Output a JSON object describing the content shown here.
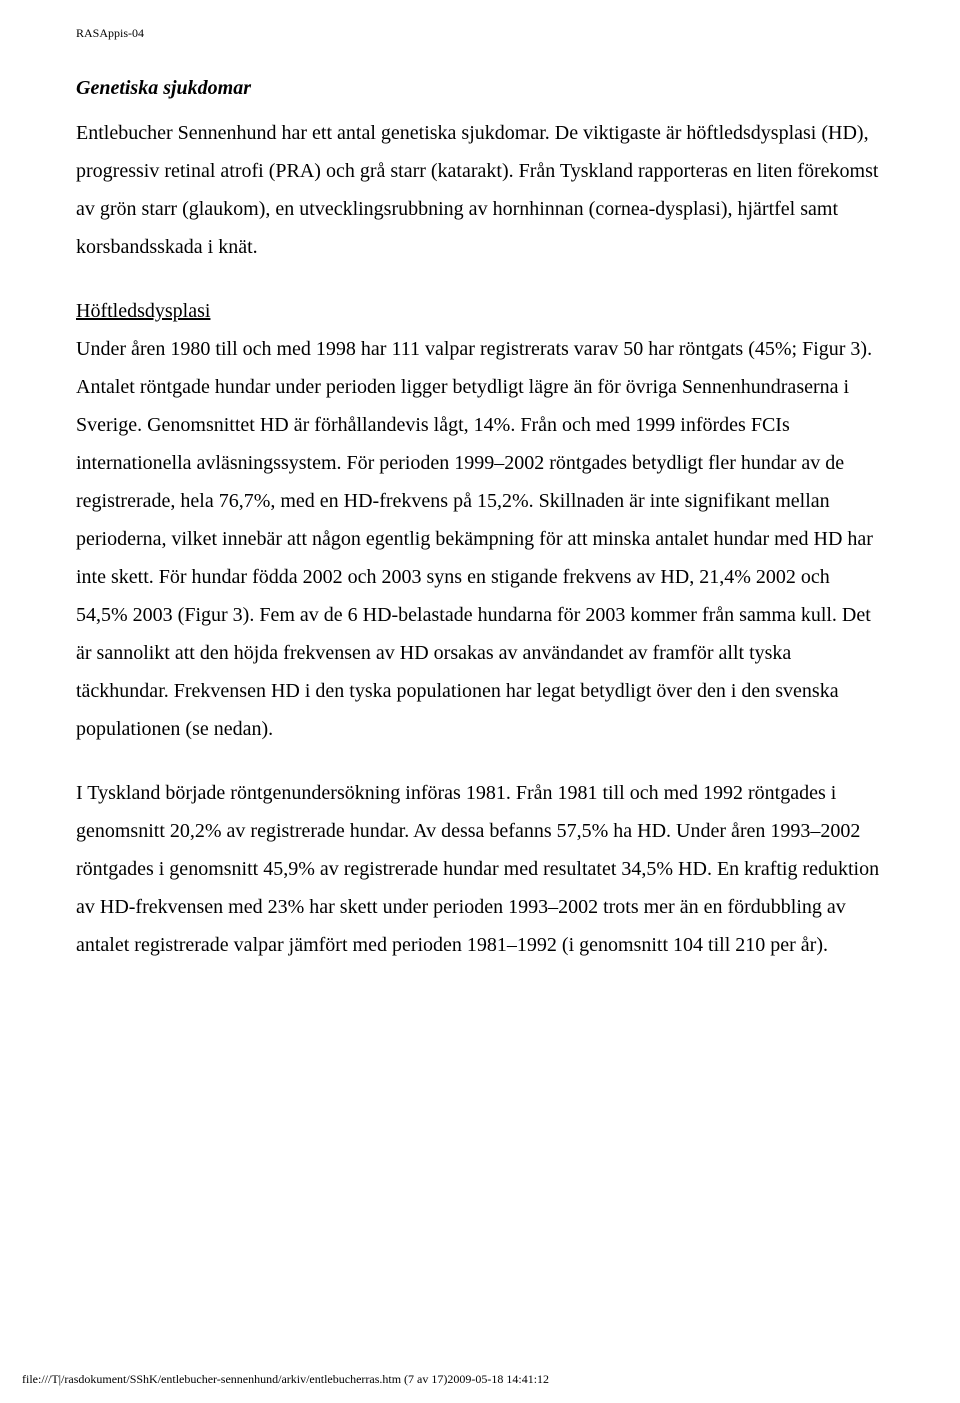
{
  "header": {
    "doc_id": "RASAppis-04"
  },
  "section": {
    "title": "Genetiska sjukdomar"
  },
  "paragraphs": {
    "intro": "Entlebucher Sennenhund har ett antal genetiska sjukdomar. De viktigaste är höftledsdysplasi (HD), progressiv retinal atrofi (PRA) och grå starr (katarakt). Från Tyskland rapporteras en liten förekomst av grön starr (glaukom), en utvecklingsrubbning av hornhinnan (cornea-dysplasi), hjärtfel samt korsbandsskada i knät.",
    "subsection_title": "Höftledsdysplasi",
    "subsection_body": "Under åren 1980 till och med 1998 har 111 valpar registrerats varav 50 har röntgats (45%; Figur 3). Antalet röntgade hundar under perioden ligger betydligt lägre än för övriga Sennenhundraserna i Sverige. Genomsnittet HD är förhållandevis lågt, 14%. Från och med 1999 infördes FCIs internationella avläsningssystem. För perioden 1999–2002 röntgades betydligt fler hundar av de registrerade, hela 76,7%, med en HD-frekvens på 15,2%. Skillnaden är inte signifikant mellan perioderna, vilket innebär att någon egentlig bekämpning för att minska antalet hundar med HD har inte skett.  För hundar födda 2002 och 2003 syns en stigande frekvens av HD, 21,4% 2002 och 54,5% 2003 (Figur 3). Fem av de 6 HD-belastade hundarna för 2003 kommer från samma kull. Det är sannolikt att den höjda frekvensen av HD orsakas av användandet av framför allt tyska täckhundar. Frekvensen HD i den tyska populationen har legat betydligt över den i den svenska populationen (se nedan).",
    "germany_body": "I Tyskland började röntgenundersökning införas 1981. Från 1981 till och med 1992 röntgades i genomsnitt 20,2% av registrerade hundar. Av dessa befanns 57,5% ha HD. Under åren 1993–2002 röntgades i genomsnitt 45,9% av registrerade hundar med resultatet 34,5% HD. En kraftig reduktion av HD-frekvensen med 23% har skett under perioden 1993–2002 trots mer än en fördubbling av antalet registrerade valpar jämfört med perioden 1981–1992 (i genomsnitt 104  till 210 per år)."
  },
  "footer": {
    "path": "file:///T|/rasdokument/SShK/entlebucher-sennenhund/arkiv/entlebucherras.htm (7 av 17)2009-05-18 14:41:12"
  }
}
